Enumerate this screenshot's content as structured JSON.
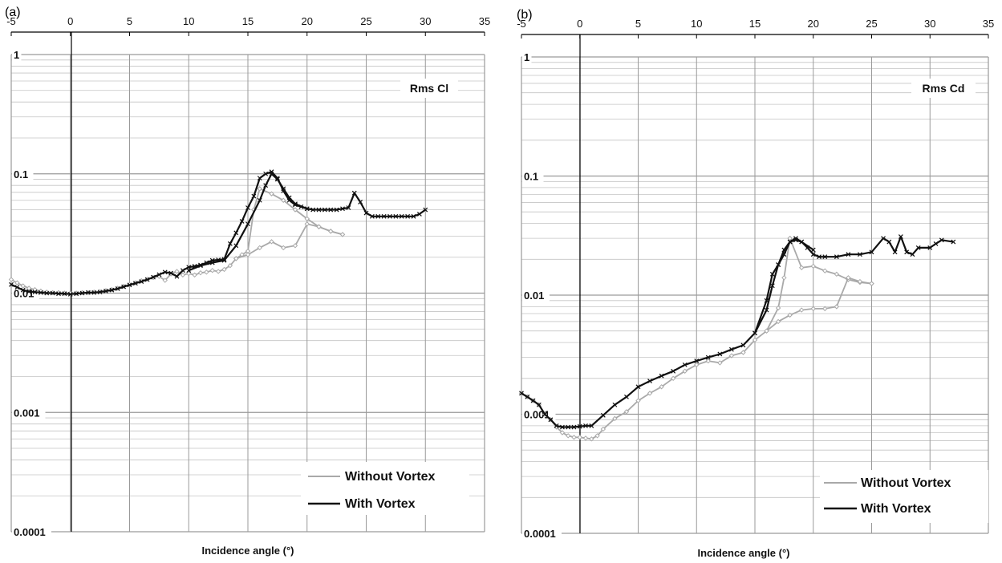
{
  "colors": {
    "without": "#a9a9a9",
    "with": "#111111",
    "major_grid": "#9a9a9a",
    "minor_grid": "#c4c4c4",
    "axis": "#000000"
  },
  "chart_data": [
    {
      "panel": "(a)",
      "type": "line",
      "title": "Rms Cl",
      "xlabel": "Incidence angle (°)",
      "ylabel": "",
      "y_scale": "log",
      "xlim": [
        -5,
        35
      ],
      "ylim": [
        0.0001,
        1
      ],
      "x_ticks": [
        "-5",
        "0",
        "5",
        "10",
        "15",
        "20",
        "25",
        "30",
        "35"
      ],
      "y_ticks": [
        "1",
        "0.1",
        "0.01",
        "0.001",
        "0.0001"
      ],
      "grid": true,
      "legend_position": "bottom-right",
      "series": [
        {
          "name": "Without Vortex",
          "color": "#a9a9a9",
          "marker": "diamond",
          "segments": [
            {
              "x": [
                -5,
                -4.5,
                -4,
                -3.5,
                -3,
                -2.5,
                -2,
                -1.5,
                -1,
                -0.5,
                0,
                0.5,
                1,
                1.5,
                2,
                2.5,
                3,
                3.5,
                4,
                4.5,
                5,
                5.5,
                6,
                6.5,
                7,
                7.5,
                8,
                8.5,
                9,
                9.5,
                10,
                10.5,
                11,
                11.5,
                12,
                12.5,
                13,
                13.5,
                14,
                14.5,
                15,
                15.5,
                16
              ],
              "y": [
                0.013,
                0.0122,
                0.0115,
                0.011,
                0.0107,
                0.0104,
                0.0102,
                0.0101,
                0.0101,
                0.01,
                0.01,
                0.01,
                0.0101,
                0.0101,
                0.0102,
                0.0103,
                0.0105,
                0.0107,
                0.011,
                0.0114,
                0.0118,
                0.0122,
                0.0127,
                0.0131,
                0.0135,
                0.0138,
                0.0128,
                0.0145,
                0.0152,
                0.0142,
                0.0146,
                0.0142,
                0.0148,
                0.015,
                0.0155,
                0.0152,
                0.0158,
                0.017,
                0.0195,
                0.021,
                0.0225,
                0.05,
                0.075
              ]
            },
            {
              "x": [
                16,
                17,
                18,
                19,
                20,
                21,
                22,
                23
              ],
              "y": [
                0.075,
                0.068,
                0.06,
                0.05,
                0.042,
                0.036,
                0.033,
                0.031
              ]
            },
            {
              "x": [
                14,
                15,
                16,
                17,
                18,
                19,
                20,
                21,
                22,
                23
              ],
              "y": [
                0.0195,
                0.021,
                0.024,
                0.027,
                0.024,
                0.025,
                0.038,
                0.036,
                0.033,
                0.031
              ]
            }
          ]
        },
        {
          "name": "With Vortex",
          "color": "#111111",
          "marker": "x",
          "segments": [
            {
              "x": [
                -5,
                -4.5,
                -4,
                -3.5,
                -3,
                -2.5,
                -2,
                -1.5,
                -1,
                -0.5,
                0,
                0.5,
                1,
                1.5,
                2,
                2.5,
                3,
                3.5,
                4,
                4.5,
                5,
                5.5,
                6,
                6.5,
                7,
                7.5,
                8,
                8.5,
                9,
                9.5,
                10,
                10.5,
                11,
                11.5,
                12,
                12.5,
                13,
                13.5,
                14,
                14.5,
                15,
                15.5,
                16,
                16.5,
                17,
                17.5,
                18,
                18.5,
                19,
                19.5,
                20,
                20.5,
                21,
                21.5,
                22,
                22.5,
                23,
                23.5,
                24,
                24.5,
                25,
                25.5,
                26,
                26.5,
                27,
                27.5,
                28,
                28.5,
                29,
                29.5,
                30
              ],
              "y": [
                0.0118,
                0.0112,
                0.0106,
                0.0103,
                0.0102,
                0.0101,
                0.01,
                0.01,
                0.0099,
                0.0099,
                0.0098,
                0.0099,
                0.01,
                0.0101,
                0.0101,
                0.0102,
                0.0104,
                0.0106,
                0.0109,
                0.0113,
                0.0117,
                0.0121,
                0.0125,
                0.013,
                0.0136,
                0.0143,
                0.015,
                0.0147,
                0.0138,
                0.0155,
                0.0165,
                0.0168,
                0.0172,
                0.018,
                0.0188,
                0.019,
                0.0192,
                0.026,
                0.032,
                0.04,
                0.052,
                0.065,
                0.092,
                0.1,
                0.104,
                0.092,
                0.072,
                0.06,
                0.055,
                0.053,
                0.051,
                0.05,
                0.05,
                0.05,
                0.05,
                0.05,
                0.051,
                0.052,
                0.069,
                0.058,
                0.047,
                0.044,
                0.044,
                0.044,
                0.044,
                0.044,
                0.044,
                0.044,
                0.044,
                0.046,
                0.05
              ]
            },
            {
              "x": [
                10,
                11,
                12,
                13,
                14,
                15,
                16,
                16.5,
                17,
                17.5,
                18,
                18.5,
                19,
                20
              ],
              "y": [
                0.0155,
                0.017,
                0.018,
                0.0188,
                0.025,
                0.038,
                0.06,
                0.08,
                0.1,
                0.09,
                0.075,
                0.063,
                0.056,
                0.051
              ]
            }
          ]
        }
      ]
    },
    {
      "panel": "(b)",
      "type": "line",
      "title": "Rms Cd",
      "xlabel": "Incidence angle (°)",
      "ylabel": "",
      "y_scale": "log",
      "xlim": [
        -5,
        35
      ],
      "ylim": [
        0.0001,
        1
      ],
      "x_ticks": [
        "-5",
        "0",
        "5",
        "10",
        "15",
        "20",
        "25",
        "30",
        "35"
      ],
      "y_ticks": [
        "1",
        "0.1",
        "0.01",
        "0.001",
        "0.0001"
      ],
      "grid": true,
      "legend_position": "bottom-right",
      "series": [
        {
          "name": "Without Vortex",
          "color": "#a9a9a9",
          "marker": "diamond",
          "segments": [
            {
              "x": [
                -5,
                -4.5,
                -4,
                -3.5,
                -3,
                -2.5,
                -2,
                -1.5,
                -1,
                -0.5,
                0,
                0.5,
                1,
                1.5,
                2,
                3,
                4,
                5,
                6,
                7,
                8,
                9,
                10,
                11,
                12,
                13,
                14,
                15,
                16,
                17,
                17.5,
                18
              ],
              "y": [
                0.0015,
                0.0014,
                0.0013,
                0.0012,
                0.001,
                0.0009,
                0.00078,
                0.0007,
                0.00066,
                0.00064,
                0.00064,
                0.00063,
                0.00062,
                0.00066,
                0.00075,
                0.00092,
                0.00105,
                0.0013,
                0.0015,
                0.0017,
                0.002,
                0.0023,
                0.0026,
                0.0028,
                0.0027,
                0.0031,
                0.0033,
                0.0042,
                0.005,
                0.0078,
                0.014,
                0.03
              ]
            },
            {
              "x": [
                18,
                19,
                20,
                21,
                22,
                23,
                24,
                25
              ],
              "y": [
                0.03,
                0.017,
                0.0175,
                0.016,
                0.015,
                0.0135,
                0.0128,
                0.0125
              ]
            },
            {
              "x": [
                16,
                17,
                18,
                19,
                20,
                21,
                22,
                23,
                24,
                25
              ],
              "y": [
                0.005,
                0.006,
                0.0068,
                0.0075,
                0.0077,
                0.0077,
                0.008,
                0.014,
                0.013,
                0.0125
              ]
            }
          ]
        },
        {
          "name": "With Vortex",
          "color": "#111111",
          "marker": "x",
          "segments": [
            {
              "x": [
                -5,
                -4.5,
                -4,
                -3.5,
                -3,
                -2.5,
                -2,
                -1.5,
                -1,
                -0.5,
                0,
                0.5,
                1,
                2,
                3,
                4,
                5,
                6,
                7,
                8,
                9,
                10,
                11,
                12,
                13,
                14,
                15,
                16,
                16.5,
                17,
                17.5,
                18,
                18.5,
                19,
                19.5,
                20,
                20.5,
                21,
                22,
                23,
                24,
                25,
                26,
                26.5,
                27,
                27.5,
                28,
                28.5,
                29,
                30,
                30.5,
                31,
                32
              ],
              "y": [
                0.0015,
                0.0014,
                0.0013,
                0.0012,
                0.001,
                0.0009,
                0.0008,
                0.00078,
                0.00078,
                0.00078,
                0.00079,
                0.0008,
                0.0008,
                0.00098,
                0.0012,
                0.0014,
                0.0017,
                0.0019,
                0.0021,
                0.0023,
                0.0026,
                0.0028,
                0.003,
                0.0032,
                0.0035,
                0.0038,
                0.0048,
                0.0075,
                0.012,
                0.018,
                0.024,
                0.028,
                0.029,
                0.028,
                0.025,
                0.022,
                0.021,
                0.021,
                0.021,
                0.022,
                0.022,
                0.023,
                0.03,
                0.028,
                0.023,
                0.031,
                0.023,
                0.022,
                0.025,
                0.025,
                0.027,
                0.029,
                0.028
              ]
            },
            {
              "x": [
                15,
                16,
                16.5,
                17,
                17.5,
                18,
                18.5,
                19,
                20
              ],
              "y": [
                0.0048,
                0.009,
                0.015,
                0.018,
                0.022,
                0.028,
                0.03,
                0.028,
                0.024
              ]
            }
          ]
        }
      ]
    }
  ]
}
